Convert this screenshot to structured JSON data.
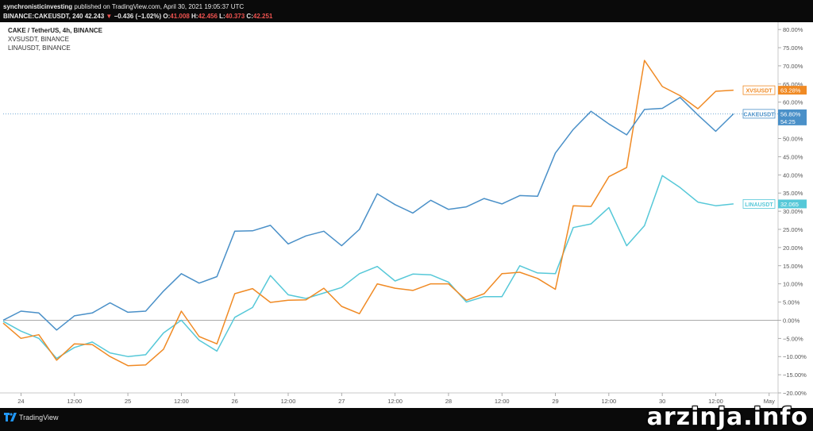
{
  "header": {
    "publisher": "synchronisticinvesting",
    "published_text": "published on TradingView.com, April 30, 2021 19:05:37 UTC",
    "symbol": "BINANCE:CAKEUSDT, 240",
    "price": "42.243",
    "arrow": "▼",
    "change": "−0.436 (−1.02%)",
    "o_label": "O:",
    "o_value": "41.008",
    "h_label": "H:",
    "h_value": "42.456",
    "l_label": "L:",
    "l_value": "40.373",
    "c_label": "C:",
    "c_value": "42.251"
  },
  "legend": {
    "main": "CAKE / TetherUS, 4h, BINANCE",
    "series2": "XVSUSDT, BINANCE",
    "series3": "LINAUSDT, BINANCE"
  },
  "footer": {
    "brand": "TradingView"
  },
  "watermark": "arzinja.info",
  "colors": {
    "cake": "#4a90c8",
    "xvs": "#f08a24",
    "lina": "#56c8d8"
  },
  "chart_data": {
    "type": "line",
    "x_unit": "4h bars",
    "x": [
      0,
      1,
      2,
      3,
      4,
      5,
      6,
      7,
      8,
      9,
      10,
      11,
      12,
      13,
      14,
      15,
      16,
      17,
      18,
      19,
      20,
      21,
      22,
      23,
      24,
      25,
      26,
      27,
      28,
      29,
      30,
      31,
      32,
      33,
      34,
      35,
      36,
      37,
      38,
      39,
      40,
      41
    ],
    "x_ticks": [
      {
        "bar": 1,
        "label": "24"
      },
      {
        "bar": 4,
        "label": "12:00"
      },
      {
        "bar": 7,
        "label": "25"
      },
      {
        "bar": 10,
        "label": "12:00"
      },
      {
        "bar": 13,
        "label": "26"
      },
      {
        "bar": 16,
        "label": "12:00"
      },
      {
        "bar": 19,
        "label": "27"
      },
      {
        "bar": 22,
        "label": "12:00"
      },
      {
        "bar": 25,
        "label": "28"
      },
      {
        "bar": 28,
        "label": "12:00"
      },
      {
        "bar": 31,
        "label": "29"
      },
      {
        "bar": 34,
        "label": "12:00"
      },
      {
        "bar": 37,
        "label": "30"
      },
      {
        "bar": 40,
        "label": "12:00"
      },
      {
        "bar": 43,
        "label": "May"
      }
    ],
    "xlim": [
      0,
      43.5
    ],
    "ylim": [
      -20,
      82
    ],
    "y_ticks": [
      -20,
      -15,
      -10,
      -5,
      0,
      5,
      10,
      15,
      20,
      25,
      30,
      35,
      40,
      45,
      50,
      55,
      60,
      65,
      70,
      75,
      80
    ],
    "y_tick_labels": [
      "−20.00%",
      "−15.00%",
      "−10.00%",
      "−5.00%",
      "0.00%",
      "5.00%",
      "10.00%",
      "15.00%",
      "20.00%",
      "25.00%",
      "30.00%",
      "35.00%",
      "40.00%",
      "45.00%",
      "50.00%",
      "55.00%",
      "60.00%",
      "65.00%",
      "70.00%",
      "75.00%",
      "80.00%"
    ],
    "y_unit": "%",
    "series": [
      {
        "name": "CAKEUSDT",
        "key": "cake",
        "label": "CAKEUSDT",
        "last_value_label": "56.80%",
        "countdown": "54:25",
        "values": [
          0.0,
          2.5,
          2.0,
          -2.7,
          1.2,
          2.0,
          4.8,
          2.2,
          2.5,
          8.0,
          12.8,
          10.2,
          12.0,
          24.5,
          24.6,
          26.1,
          21.0,
          23.2,
          24.5,
          20.5,
          25.0,
          34.8,
          31.8,
          29.5,
          33.0,
          30.5,
          31.2,
          33.5,
          32.0,
          34.3,
          34.1,
          46.0,
          52.5,
          57.5,
          54.0,
          51.0,
          58.0,
          58.3,
          61.3,
          56.5,
          52.0,
          56.8
        ]
      },
      {
        "name": "XVSUSDT",
        "key": "xvs",
        "label": "XVSUSDT",
        "last_value_label": "63.28%",
        "values": [
          -0.8,
          -5.0,
          -4.0,
          -11.0,
          -6.5,
          -6.7,
          -10.0,
          -12.5,
          -12.3,
          -8.0,
          2.5,
          -4.5,
          -6.5,
          7.3,
          8.7,
          4.9,
          5.5,
          5.6,
          8.8,
          3.8,
          1.8,
          10.0,
          8.8,
          8.2,
          10.0,
          10.0,
          5.5,
          7.3,
          12.8,
          13.2,
          11.5,
          8.5,
          31.5,
          31.3,
          39.5,
          42.0,
          71.5,
          64.3,
          61.8,
          58.2,
          63.0,
          63.3
        ]
      },
      {
        "name": "LINAUSDT",
        "key": "lina",
        "label": "LINAUSDT",
        "last_value_label": "32.065",
        "values": [
          -0.3,
          -3.0,
          -5.0,
          -10.5,
          -7.5,
          -6.0,
          -9.0,
          -10.0,
          -9.5,
          -3.5,
          0.0,
          -5.5,
          -8.5,
          0.8,
          3.5,
          12.3,
          7.0,
          6.0,
          7.5,
          9.0,
          12.8,
          14.8,
          10.8,
          12.7,
          12.5,
          10.5,
          5.0,
          6.5,
          6.5,
          15.0,
          13.0,
          12.8,
          25.5,
          26.5,
          31.0,
          20.5,
          26.0,
          39.8,
          36.5,
          32.5,
          31.5,
          32.0
        ]
      }
    ]
  }
}
